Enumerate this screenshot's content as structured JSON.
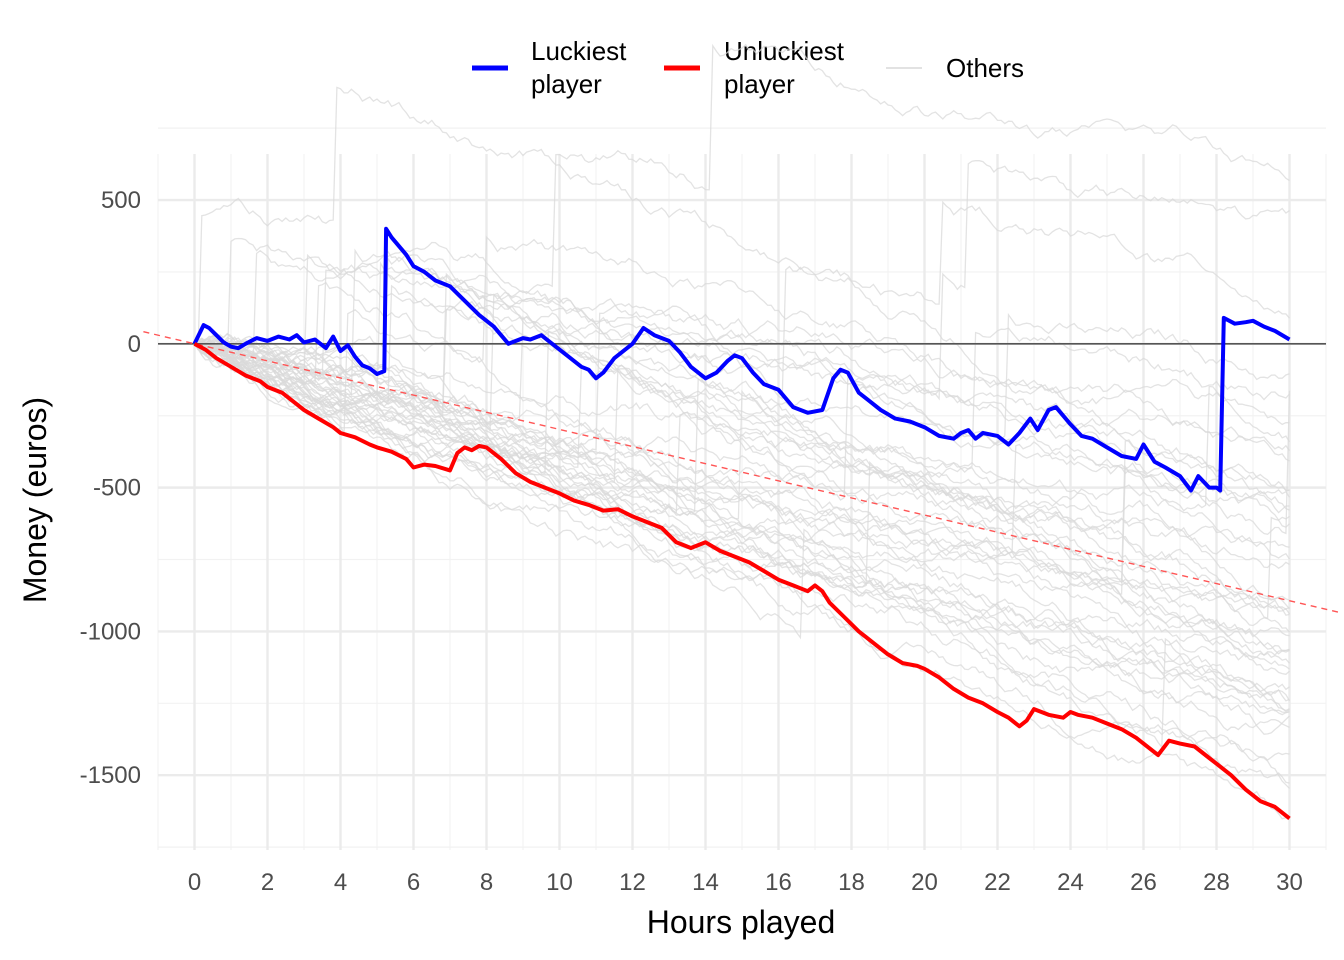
{
  "chart_data": {
    "type": "line",
    "xlabel": "Hours played",
    "ylabel": "Money (euros)",
    "xlim": [
      -1,
      31
    ],
    "ylim": [
      -1760,
      660
    ],
    "x_ticks": [
      0,
      2,
      4,
      6,
      8,
      10,
      12,
      14,
      16,
      18,
      20,
      22,
      24,
      26,
      28,
      30
    ],
    "x_tick_labels": [
      "0",
      "2",
      "4",
      "6",
      "8",
      "10",
      "12",
      "14",
      "16",
      "18",
      "20",
      "22",
      "24",
      "26",
      "28",
      "30"
    ],
    "y_ticks": [
      500,
      0,
      -500,
      -1000,
      -1500
    ],
    "y_tick_labels": [
      "500",
      "0",
      "-500",
      "-1000",
      "-1500"
    ],
    "grid": true,
    "legend_position": "top",
    "legend": [
      {
        "label_lines": [
          "Luckiest",
          "player"
        ],
        "color": "#0000ff"
      },
      {
        "label_lines": [
          "Unluckiest",
          "player"
        ],
        "color": "#ff0000"
      },
      {
        "label_lines": [
          "Others"
        ],
        "color": "#d9d9d9"
      }
    ],
    "reference_lines": [
      {
        "type": "horizontal",
        "y": 0,
        "color": "#555555"
      },
      {
        "type": "trend",
        "style": "dashed",
        "color": "#ff5555",
        "x": [
          -1.4,
          31.4
        ],
        "y": [
          42,
          -935
        ]
      }
    ],
    "series": [
      {
        "name": "Luckiest player",
        "color": "#0000ff",
        "x": [
          0,
          0.25,
          0.4,
          0.6,
          0.8,
          1,
          1.2,
          1.4,
          1.7,
          2,
          2.3,
          2.6,
          2.8,
          3,
          3.3,
          3.6,
          3.8,
          4,
          4.2,
          4.4,
          4.6,
          4.8,
          5,
          5.2,
          5.25,
          5.4,
          5.8,
          6,
          6.3,
          6.6,
          7,
          7.4,
          7.8,
          8.2,
          8.6,
          9,
          9.2,
          9.5,
          9.8,
          10,
          10.3,
          10.6,
          10.8,
          11,
          11.2,
          11.5,
          11.8,
          12,
          12.3,
          12.6,
          13,
          13.3,
          13.6,
          14,
          14.3,
          14.6,
          14.8,
          15,
          15.3,
          15.6,
          16,
          16.4,
          16.8,
          17.2,
          17.5,
          17.7,
          17.9,
          18.2,
          18.5,
          18.8,
          19.2,
          19.6,
          20,
          20.4,
          20.8,
          21,
          21.2,
          21.4,
          21.6,
          22,
          22.3,
          22.6,
          22.9,
          23.1,
          23.4,
          23.6,
          24,
          24.3,
          24.6,
          25,
          25.4,
          25.8,
          26,
          26.3,
          26.6,
          27,
          27.3,
          27.5,
          27.8,
          28,
          28.1,
          28.2,
          28.5,
          28.8,
          29,
          29.3,
          29.6,
          30
        ],
        "y": [
          0,
          65,
          55,
          30,
          5,
          -10,
          -15,
          0,
          20,
          10,
          25,
          15,
          30,
          5,
          15,
          -15,
          25,
          -25,
          -5,
          -45,
          -75,
          -85,
          -105,
          -95,
          400,
          370,
          310,
          270,
          250,
          220,
          200,
          150,
          100,
          60,
          0,
          20,
          15,
          30,
          0,
          -20,
          -50,
          -80,
          -90,
          -120,
          -100,
          -50,
          -20,
          0,
          55,
          30,
          10,
          -30,
          -80,
          -120,
          -100,
          -60,
          -40,
          -50,
          -100,
          -140,
          -160,
          -220,
          -240,
          -230,
          -120,
          -90,
          -100,
          -170,
          -200,
          -230,
          -260,
          -270,
          -290,
          -320,
          -330,
          -310,
          -300,
          -330,
          -310,
          -320,
          -350,
          -310,
          -260,
          -300,
          -230,
          -220,
          -280,
          -320,
          -330,
          -360,
          -390,
          -400,
          -350,
          -410,
          -430,
          -460,
          -510,
          -460,
          -500,
          -500,
          -510,
          90,
          70,
          75,
          80,
          60,
          45,
          15
        ]
      },
      {
        "name": "Unluckiest player",
        "color": "#ff0000",
        "x": [
          0,
          0.3,
          0.6,
          1,
          1.4,
          1.8,
          2,
          2.4,
          2.8,
          3,
          3.4,
          3.8,
          4,
          4.4,
          4.8,
          5,
          5.4,
          5.8,
          6,
          6.3,
          6.6,
          7,
          7.2,
          7.4,
          7.6,
          7.8,
          8,
          8.4,
          8.8,
          9.2,
          9.6,
          10,
          10.4,
          10.8,
          11.2,
          11.6,
          12,
          12.4,
          12.8,
          13.2,
          13.6,
          14,
          14.4,
          14.8,
          15.2,
          15.6,
          16,
          16.4,
          16.8,
          17,
          17.2,
          17.4,
          17.8,
          18.2,
          18.6,
          19,
          19.4,
          19.8,
          20,
          20.4,
          20.8,
          21.2,
          21.6,
          22,
          22.3,
          22.6,
          22.8,
          23,
          23.4,
          23.8,
          24,
          24.2,
          24.6,
          25,
          25.4,
          25.8,
          26,
          26.2,
          26.4,
          26.7,
          27,
          27.4,
          27.8,
          28,
          28.4,
          28.8,
          29.2,
          29.6,
          30
        ],
        "y": [
          0,
          -20,
          -50,
          -80,
          -110,
          -130,
          -150,
          -170,
          -210,
          -230,
          -260,
          -290,
          -310,
          -325,
          -350,
          -360,
          -375,
          -400,
          -430,
          -420,
          -425,
          -440,
          -380,
          -360,
          -370,
          -355,
          -360,
          -400,
          -450,
          -480,
          -500,
          -520,
          -545,
          -560,
          -580,
          -575,
          -600,
          -620,
          -640,
          -690,
          -710,
          -690,
          -720,
          -740,
          -760,
          -790,
          -820,
          -840,
          -860,
          -840,
          -860,
          -900,
          -950,
          -1000,
          -1040,
          -1080,
          -1110,
          -1120,
          -1130,
          -1160,
          -1200,
          -1230,
          -1250,
          -1280,
          -1300,
          -1330,
          -1310,
          -1270,
          -1290,
          -1300,
          -1280,
          -1290,
          -1300,
          -1320,
          -1340,
          -1370,
          -1390,
          -1410,
          -1430,
          -1380,
          -1390,
          -1400,
          -1440,
          -1460,
          -1500,
          -1550,
          -1590,
          -1610,
          -1650
        ]
      }
    ]
  }
}
